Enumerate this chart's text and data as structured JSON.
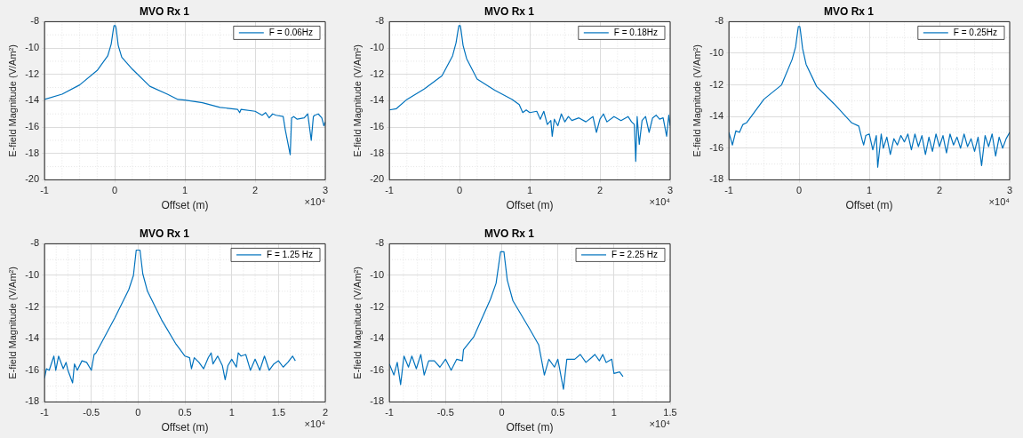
{
  "chart_data": [
    {
      "type": "line",
      "title": "MVO Rx 1",
      "xlabel": "Offset (m)",
      "ylabel": "E-field Magnitude (V/Am²)",
      "annotations": [
        "×10⁴"
      ],
      "legend": "top right",
      "grid": true,
      "xlim": [
        -1,
        3
      ],
      "xticks": [
        -1,
        0,
        1,
        2,
        3
      ],
      "ylim": [
        -20,
        -8
      ],
      "yticks": [
        -20,
        -18,
        -16,
        -14,
        -12,
        -10,
        -8
      ],
      "series": [
        {
          "name": "F = 0.06Hz",
          "color": "#0072bd",
          "x": [
            -1,
            -0.75,
            -0.5,
            -0.25,
            -0.1,
            -0.05,
            -0.02,
            -0.01,
            0.01,
            0.02,
            0.05,
            0.1,
            0.25,
            0.5,
            0.75,
            0.9,
            1,
            1.25,
            1.5,
            1.75,
            1.78,
            1.8,
            2,
            2.1,
            2.15,
            2.2,
            2.25,
            2.3,
            2.4,
            2.43,
            2.5,
            2.52,
            2.55,
            2.6,
            2.7,
            2.75,
            2.8,
            2.83,
            2.85,
            2.9,
            2.95,
            2.98,
            3
          ],
          "values": [
            -13.9,
            -13.5,
            -12.8,
            -11.7,
            -10.6,
            -9.7,
            -8.6,
            -8.3,
            -8.3,
            -8.5,
            -9.8,
            -10.7,
            -11.6,
            -12.9,
            -13.5,
            -13.9,
            -13.95,
            -14.15,
            -14.5,
            -14.65,
            -14.9,
            -14.65,
            -14.8,
            -15.1,
            -14.9,
            -15.3,
            -15.0,
            -15.1,
            -15.2,
            -16.2,
            -18.1,
            -15.3,
            -15.2,
            -15.4,
            -15.3,
            -15.0,
            -17.0,
            -15.2,
            -15.1,
            -15.0,
            -15.3,
            -15.9,
            -15.6
          ]
        }
      ]
    },
    {
      "type": "line",
      "title": "MVO Rx 1",
      "xlabel": "Offset (m)",
      "ylabel": "E-field Magnitude (V/Am²)",
      "annotations": [
        "×10⁴"
      ],
      "legend": "top right",
      "grid": true,
      "xlim": [
        -1,
        3
      ],
      "xticks": [
        -1,
        0,
        1,
        2,
        3
      ],
      "ylim": [
        -20,
        -8
      ],
      "yticks": [
        -20,
        -18,
        -16,
        -14,
        -12,
        -10,
        -8
      ],
      "series": [
        {
          "name": "F = 0.18Hz",
          "color": "#0072bd",
          "x": [
            -1,
            -0.9,
            -0.75,
            -0.5,
            -0.25,
            -0.1,
            -0.05,
            -0.02,
            -0.01,
            0.01,
            0.02,
            0.05,
            0.1,
            0.25,
            0.5,
            0.75,
            0.85,
            0.9,
            0.95,
            1,
            1.1,
            1.15,
            1.2,
            1.25,
            1.3,
            1.32,
            1.35,
            1.4,
            1.45,
            1.5,
            1.55,
            1.6,
            1.7,
            1.8,
            1.9,
            1.95,
            2,
            2.05,
            2.1,
            2.2,
            2.3,
            2.4,
            2.45,
            2.49,
            2.51,
            2.53,
            2.56,
            2.6,
            2.65,
            2.7,
            2.75,
            2.8,
            2.85,
            2.9,
            2.95,
            2.98,
            3
          ],
          "values": [
            -14.7,
            -14.6,
            -13.9,
            -13.1,
            -12.1,
            -10.6,
            -9.6,
            -8.6,
            -8.3,
            -8.3,
            -8.6,
            -9.8,
            -10.8,
            -12.35,
            -13.2,
            -13.9,
            -14.3,
            -14.9,
            -14.7,
            -14.9,
            -14.8,
            -15.4,
            -14.8,
            -15.8,
            -15.5,
            -16.7,
            -15.4,
            -15.9,
            -15.0,
            -15.6,
            -15.2,
            -15.5,
            -15.3,
            -15.6,
            -15.2,
            -16.4,
            -15.4,
            -15.0,
            -15.6,
            -15.2,
            -15.5,
            -15.2,
            -15.6,
            -15.8,
            -18.6,
            -15.2,
            -17.3,
            -15.5,
            -15.2,
            -16.4,
            -15.3,
            -15.1,
            -15.4,
            -15.3,
            -16.7,
            -15.1,
            -15.9
          ]
        }
      ]
    },
    {
      "type": "line",
      "title": "MVO Rx 1",
      "xlabel": "Offset (m)",
      "ylabel": "E-field Magnitude (V/Am²)",
      "annotations": [
        "×10⁴"
      ],
      "legend": "top right",
      "grid": true,
      "xlim": [
        -1,
        3
      ],
      "xticks": [
        -1,
        0,
        1,
        2,
        3
      ],
      "ylim": [
        -18,
        -8
      ],
      "yticks": [
        -18,
        -16,
        -14,
        -12,
        -10,
        -8
      ],
      "series": [
        {
          "name": "F = 0.25Hz",
          "color": "#0072bd",
          "x": [
            -1,
            -0.95,
            -0.9,
            -0.85,
            -0.8,
            -0.75,
            -0.5,
            -0.25,
            -0.1,
            -0.05,
            -0.02,
            -0.01,
            0.01,
            0.02,
            0.05,
            0.1,
            0.25,
            0.5,
            0.75,
            0.85,
            0.9,
            0.92,
            0.95,
            1,
            1.05,
            1.1,
            1.12,
            1.17,
            1.2,
            1.25,
            1.3,
            1.35,
            1.4,
            1.45,
            1.5,
            1.55,
            1.6,
            1.65,
            1.7,
            1.75,
            1.8,
            1.85,
            1.9,
            1.95,
            2,
            2.05,
            2.1,
            2.15,
            2.2,
            2.25,
            2.3,
            2.35,
            2.4,
            2.45,
            2.5,
            2.55,
            2.6,
            2.65,
            2.7,
            2.75,
            2.8,
            2.85,
            2.9,
            2.95,
            3
          ],
          "values": [
            -15.0,
            -15.8,
            -14.9,
            -15.0,
            -14.5,
            -14.4,
            -12.9,
            -12.0,
            -10.4,
            -9.6,
            -8.6,
            -8.3,
            -8.3,
            -8.6,
            -9.7,
            -10.7,
            -12.1,
            -13.2,
            -14.4,
            -14.6,
            -15.5,
            -15.8,
            -15.2,
            -15.1,
            -16.1,
            -15.2,
            -17.2,
            -15.1,
            -16.0,
            -15.3,
            -16.4,
            -15.4,
            -15.8,
            -15.2,
            -15.6,
            -15.1,
            -16.1,
            -15.1,
            -15.9,
            -15.2,
            -16.4,
            -15.3,
            -16.2,
            -15.1,
            -15.9,
            -15.2,
            -16.3,
            -15.1,
            -15.8,
            -15.3,
            -16.0,
            -15.1,
            -15.9,
            -15.4,
            -16.2,
            -15.3,
            -17.1,
            -15.2,
            -15.9,
            -15.1,
            -16.5,
            -15.3,
            -16.0,
            -15.4,
            -15.0
          ]
        }
      ]
    },
    {
      "type": "line",
      "title": "MVO Rx 1",
      "xlabel": "Offset (m)",
      "ylabel": "E-field Magnitude (V/Am²)",
      "annotations": [
        "×10⁴"
      ],
      "legend": "top right",
      "grid": true,
      "xlim": [
        -1,
        2
      ],
      "xticks": [
        -1,
        -0.5,
        0,
        0.5,
        1,
        1.5,
        2
      ],
      "ylim": [
        -18,
        -8
      ],
      "yticks": [
        -18,
        -16,
        -14,
        -12,
        -10,
        -8
      ],
      "series": [
        {
          "name": "F = 1.25 Hz",
          "color": "#0072bd",
          "x": [
            -1,
            -0.98,
            -0.95,
            -0.9,
            -0.88,
            -0.85,
            -0.8,
            -0.77,
            -0.75,
            -0.7,
            -0.68,
            -0.65,
            -0.6,
            -0.55,
            -0.5,
            -0.47,
            -0.45,
            -0.25,
            -0.1,
            -0.05,
            -0.02,
            0.02,
            0.05,
            0.1,
            0.25,
            0.4,
            0.45,
            0.5,
            0.55,
            0.57,
            0.6,
            0.65,
            0.7,
            0.75,
            0.78,
            0.8,
            0.85,
            0.9,
            0.93,
            0.96,
            1,
            1.05,
            1.07,
            1.1,
            1.15,
            1.2,
            1.25,
            1.3,
            1.35,
            1.4,
            1.45,
            1.5,
            1.55,
            1.6,
            1.65,
            1.68
          ],
          "values": [
            -16.5,
            -15.9,
            -16.0,
            -15.1,
            -16.0,
            -15.1,
            -15.9,
            -15.5,
            -16.0,
            -16.8,
            -15.6,
            -16.0,
            -15.4,
            -15.5,
            -16.0,
            -15.0,
            -14.9,
            -12.7,
            -10.9,
            -10.0,
            -8.4,
            -8.4,
            -9.9,
            -11.0,
            -12.8,
            -14.3,
            -14.7,
            -15.1,
            -15.2,
            -15.9,
            -15.2,
            -15.5,
            -15.9,
            -15.2,
            -14.9,
            -15.6,
            -15.1,
            -15.7,
            -16.6,
            -15.7,
            -15.3,
            -15.8,
            -14.9,
            -15.1,
            -15.0,
            -16.0,
            -15.3,
            -16.0,
            -15.1,
            -16.0,
            -15.6,
            -15.4,
            -15.8,
            -15.5,
            -15.1,
            -15.4
          ]
        }
      ]
    },
    {
      "type": "line",
      "title": "MVO Rx 1",
      "xlabel": "Offset (m)",
      "ylabel": "E-field Magnitude (V/Am²)",
      "annotations": [
        "×10⁴"
      ],
      "legend": "top right",
      "grid": true,
      "xlim": [
        -1,
        1.5
      ],
      "xticks": [
        -1,
        -0.5,
        0,
        0.5,
        1,
        1.5
      ],
      "ylim": [
        -18,
        -8
      ],
      "yticks": [
        -18,
        -16,
        -14,
        -12,
        -10,
        -8
      ],
      "series": [
        {
          "name": "F = 2.25 Hz",
          "color": "#0072bd",
          "x": [
            -1,
            -0.96,
            -0.93,
            -0.9,
            -0.87,
            -0.83,
            -0.8,
            -0.76,
            -0.72,
            -0.69,
            -0.65,
            -0.6,
            -0.55,
            -0.5,
            -0.45,
            -0.4,
            -0.35,
            -0.34,
            -0.25,
            -0.1,
            -0.05,
            -0.01,
            0.02,
            0.05,
            0.1,
            0.25,
            0.33,
            0.38,
            0.42,
            0.47,
            0.5,
            0.55,
            0.58,
            0.65,
            0.7,
            0.75,
            0.8,
            0.83,
            0.87,
            0.9,
            0.93,
            0.98,
            1,
            1.05,
            1.08
          ],
          "values": [
            -15.6,
            -16.3,
            -15.5,
            -16.9,
            -15.1,
            -15.8,
            -15.1,
            -15.9,
            -15.0,
            -16.3,
            -15.4,
            -15.4,
            -15.8,
            -15.3,
            -16.0,
            -15.3,
            -15.4,
            -14.7,
            -13.9,
            -11.5,
            -10.5,
            -8.5,
            -8.5,
            -10.3,
            -11.6,
            -13.4,
            -14.4,
            -16.3,
            -15.3,
            -15.8,
            -15.3,
            -17.2,
            -15.3,
            -15.3,
            -15.0,
            -15.5,
            -15.2,
            -15.0,
            -15.4,
            -15.0,
            -15.5,
            -15.3,
            -16.2,
            -16.1,
            -16.4
          ]
        }
      ]
    }
  ]
}
